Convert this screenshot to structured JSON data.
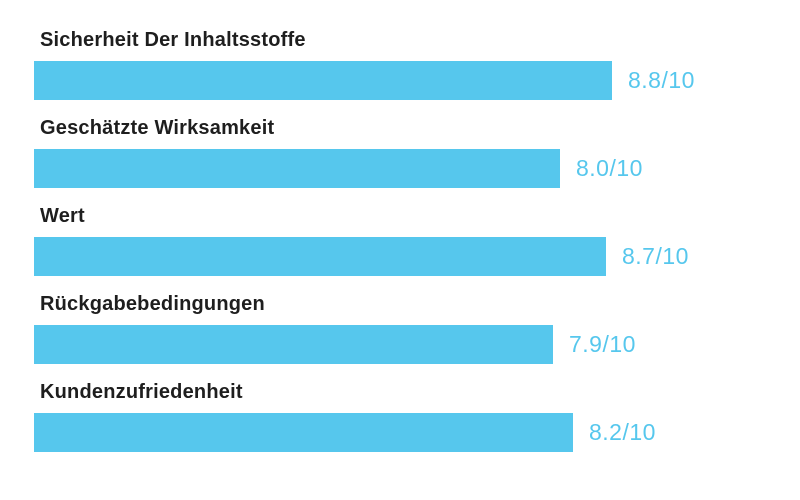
{
  "chart_data": {
    "type": "bar",
    "orientation": "horizontal",
    "title": "",
    "xlabel": "",
    "ylabel": "",
    "max_score": 10,
    "xlim": [
      0,
      10
    ],
    "grid": false,
    "legend": false,
    "bar_color": "#56c7ed",
    "value_text_color": "#56c7ed",
    "label_text_color": "#1e1e1e",
    "background_color": "#ffffff",
    "categories": [
      "Sicherheit Der Inhaltsstoffe",
      "Geschätzte Wirksamkeit",
      "Wert",
      "Rückgabebedingungen",
      "Kundenzufriedenheit"
    ],
    "values": [
      8.8,
      8.0,
      8.7,
      7.9,
      8.2
    ],
    "value_labels": [
      "8.8/10",
      "8.0/10",
      "8.7/10",
      "7.9/10",
      "8.2/10"
    ]
  }
}
